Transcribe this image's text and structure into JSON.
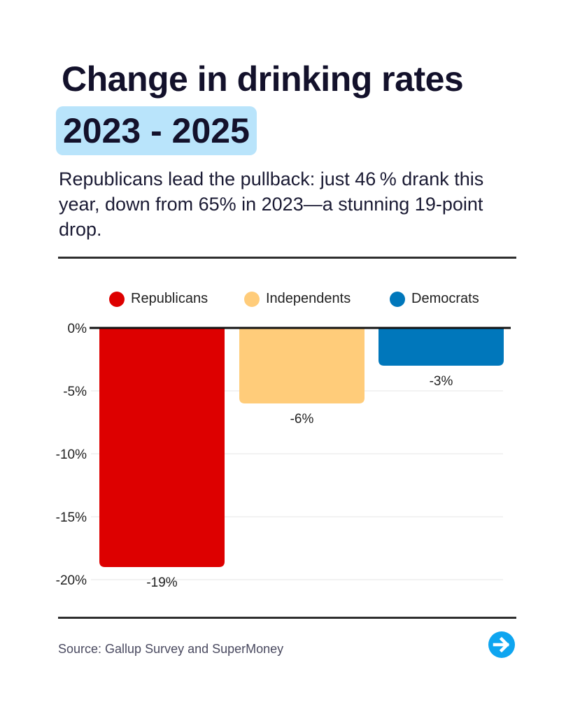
{
  "header": {
    "title": "Change in drinking rates",
    "years": "2023 - 2025",
    "subtitle": "Republicans lead the pullback: just 46 % drank this year, down from 65% in 2023—a stunning 19-point drop."
  },
  "footer": {
    "source": "Source: Gallup Survey and SuperMoney",
    "next_icon": "arrow-right-circle-icon",
    "next_color": "#0ea5f0"
  },
  "chart_data": {
    "type": "bar",
    "categories": [
      "Republicans",
      "Independents",
      "Democrats"
    ],
    "values": [
      -19,
      -6,
      -3
    ],
    "data_labels": [
      "-19%",
      "-6%",
      "-3%"
    ],
    "colors": [
      "#dd0000",
      "#ffcc7a",
      "#0077bb"
    ],
    "legend": [
      "Republicans",
      "Independents",
      "Democrats"
    ],
    "legend_position": "top",
    "ylim": [
      -20,
      0
    ],
    "yticks": [
      0,
      -5,
      -10,
      -15,
      -20
    ],
    "ytick_labels": [
      "0%",
      "-5%",
      "-10%",
      "-15%",
      "-20%"
    ],
    "grid": true,
    "title": "",
    "xlabel": "",
    "ylabel": ""
  }
}
